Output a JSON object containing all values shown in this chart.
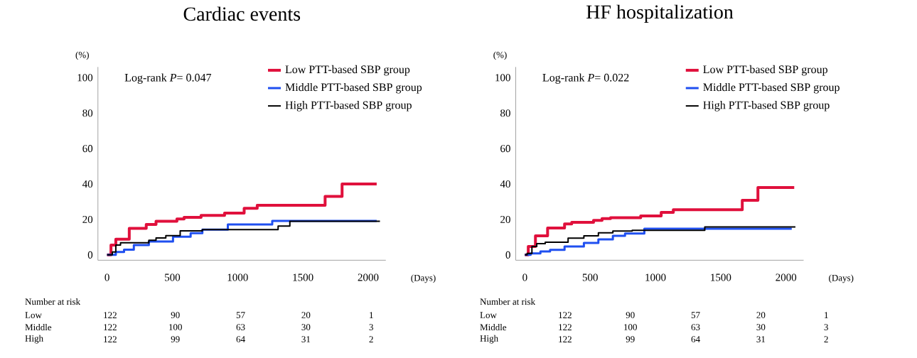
{
  "chart_data": [
    {
      "type": "step",
      "title": "Cardiac events",
      "xlabel": "(Days)",
      "ylabel": "(%)",
      "annotations": [
        "Log-rank *P*= 0.047",
        "Number at risk",
        "Low",
        "122",
        "90",
        "57",
        "20",
        "1",
        "Middle",
        "122",
        "100",
        "63",
        "30",
        "3",
        "High",
        "122",
        "99",
        "64",
        "31",
        "2"
      ],
      "xlim": [
        -70,
        2135
      ],
      "ylim": [
        -3,
        106
      ],
      "xticks": [
        0,
        500,
        1000,
        1500,
        2000
      ],
      "yticks": [
        0,
        20,
        40,
        60,
        80,
        100
      ],
      "legend": "top right",
      "series": [
        {
          "name": "Low PTT-based SBP group",
          "color": "#e0103c",
          "x": [
            0,
            30,
            67,
            170,
            300,
            375,
            535,
            590,
            720,
            900,
            1050,
            1150,
            1670,
            1800,
            2065
          ],
          "values": [
            0,
            5.6,
            8.9,
            15,
            17.2,
            19,
            20.3,
            21.2,
            22.3,
            23.6,
            26.3,
            28,
            33,
            40,
            40
          ]
        },
        {
          "name": "Middle PTT-based SBP group",
          "color": "#1f4ff0",
          "x": [
            0,
            67,
            130,
            205,
            320,
            505,
            640,
            730,
            925,
            1265,
            2065
          ],
          "values": [
            0,
            1.6,
            2.9,
            5.6,
            7.6,
            10.3,
            12.3,
            14.3,
            17.2,
            19.2,
            19.2
          ]
        },
        {
          "name": "High PTT-based SBP group",
          "color": "#000000",
          "x": [
            0,
            40,
            67,
            103,
            320,
            375,
            450,
            560,
            730,
            1310,
            1400,
            2090
          ],
          "values": [
            0,
            1.6,
            5.6,
            6.9,
            8.3,
            9.6,
            10.9,
            13.6,
            14.3,
            16.3,
            19,
            19
          ]
        }
      ]
    },
    {
      "type": "step",
      "title": "HF hospitalization",
      "xlabel": "(Days)",
      "ylabel": "(%)",
      "annotations": [
        "Log-rank *P*= 0.022",
        "Number at risk",
        "Low",
        "122",
        "90",
        "57",
        "20",
        "1",
        "Middle",
        "122",
        "100",
        "63",
        "30",
        "3",
        "High",
        "122",
        "99",
        "64",
        "31",
        "2"
      ],
      "xlim": [
        -70,
        2135
      ],
      "ylim": [
        -3,
        106
      ],
      "xticks": [
        0,
        500,
        1000,
        1500,
        2000
      ],
      "yticks": [
        0,
        20,
        40,
        60,
        80,
        100
      ],
      "legend": "top right",
      "series": [
        {
          "name": "Low PTT-based SBP group",
          "color": "#e0103c",
          "x": [
            0,
            26,
            81,
            174,
            304,
            359,
            526,
            591,
            656,
            887,
            1044,
            1137,
            1665,
            1785,
            2063
          ],
          "values": [
            0,
            4.8,
            10.8,
            15.2,
            17.5,
            18.4,
            19.5,
            20.5,
            21,
            22,
            24,
            25.5,
            30.8,
            38,
            38
          ]
        },
        {
          "name": "Middle PTT-based SBP group",
          "color": "#1f4ff0",
          "x": [
            0,
            44,
            119,
            193,
            304,
            452,
            563,
            674,
            767,
            915,
            2044
          ],
          "values": [
            0,
            0.8,
            1.9,
            2.8,
            4.8,
            6.8,
            8.8,
            10.8,
            12.1,
            14.8,
            14.8
          ]
        },
        {
          "name": "High PTT-based SBP group",
          "color": "#000000",
          "x": [
            0,
            17,
            54,
            91,
            156,
            331,
            452,
            563,
            674,
            822,
            1378,
            2072
          ],
          "values": [
            0,
            0.8,
            4.8,
            6.4,
            7.2,
            9.5,
            10.8,
            12.5,
            13.5,
            13.9,
            15.8,
            15.8
          ]
        }
      ]
    }
  ]
}
